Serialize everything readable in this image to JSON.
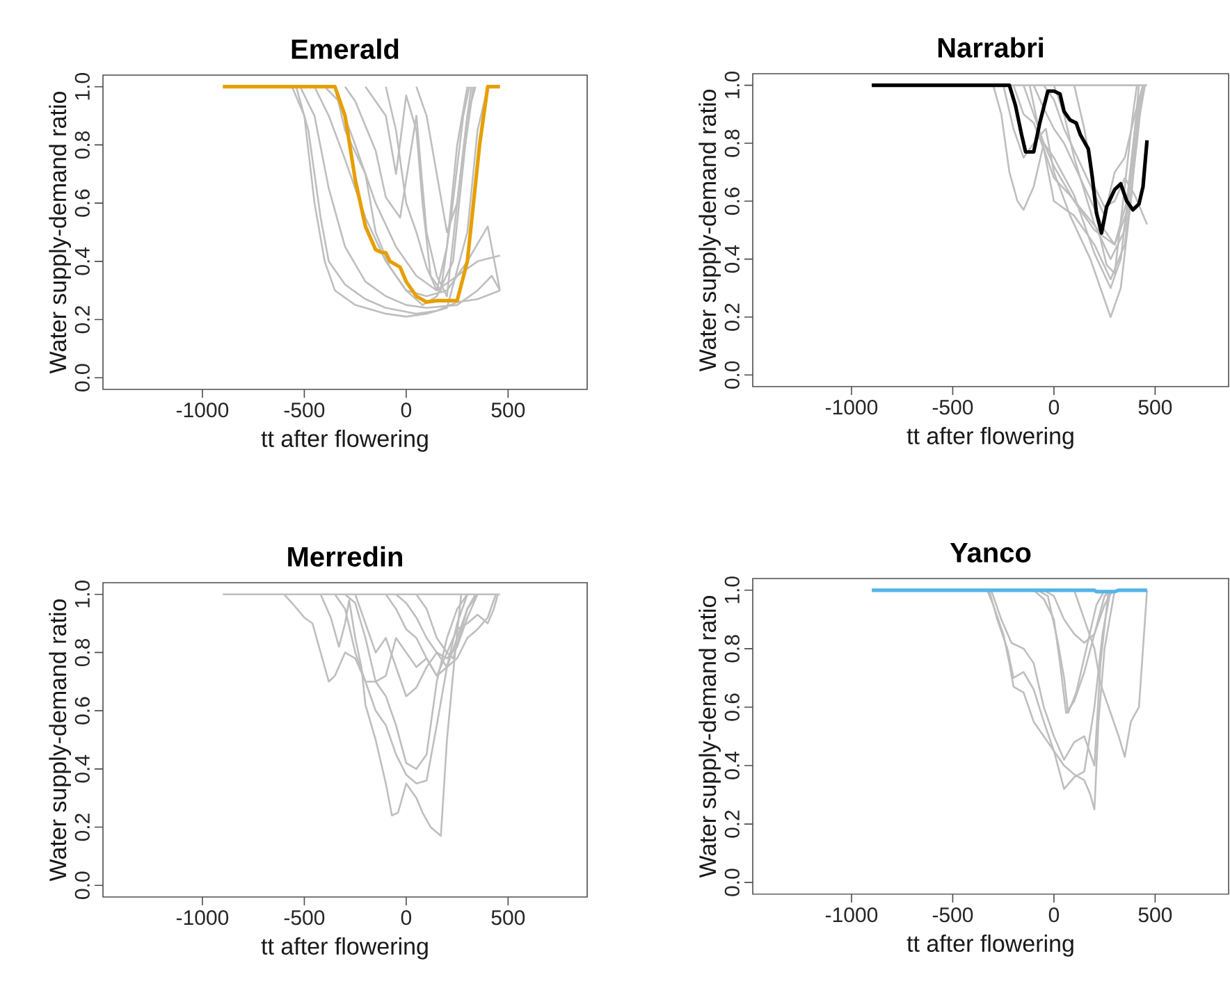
{
  "chart_data": [
    {
      "type": "line",
      "title": "Emerald",
      "xlabel": "tt after flowering",
      "ylabel": "Water supply-demand ratio",
      "xlim": [
        -1488,
        888
      ],
      "ylim": [
        -0.04,
        1.04
      ],
      "xticks": [
        -1000,
        -500,
        0,
        500
      ],
      "yticks": [
        {
          "value": 0,
          "label": "0.0"
        },
        {
          "value": 0.2,
          "label": "0.2"
        },
        {
          "value": 0.4,
          "label": "0.4"
        },
        {
          "value": 0.6,
          "label": "0.6"
        },
        {
          "value": 0.8,
          "label": "0.8"
        },
        {
          "value": 1,
          "label": "1.0"
        }
      ],
      "series": [
        {
          "color": "#bebebe",
          "x": [
            -560,
            -500,
            -450,
            -400,
            -350,
            -250,
            -100,
            0,
            100,
            200,
            300,
            350,
            400,
            460
          ],
          "values": [
            1,
            0.9,
            0.6,
            0.4,
            0.3,
            0.25,
            0.22,
            0.21,
            0.22,
            0.24,
            0.5,
            0.85,
            1,
            1
          ]
        },
        {
          "color": "#bebebe",
          "x": [
            -540,
            -480,
            -420,
            -380,
            -300,
            -200,
            -100,
            50,
            150,
            250,
            350,
            460
          ],
          "values": [
            1,
            0.85,
            0.55,
            0.4,
            0.32,
            0.27,
            0.24,
            0.22,
            0.23,
            0.26,
            0.27,
            0.3
          ]
        },
        {
          "color": "#bebebe",
          "x": [
            -520,
            -450,
            -380,
            -300,
            -200,
            -100,
            0,
            100,
            250,
            350,
            420,
            460
          ],
          "values": [
            1,
            0.9,
            0.65,
            0.45,
            0.33,
            0.28,
            0.25,
            0.24,
            0.25,
            0.3,
            0.35,
            0.3
          ]
        },
        {
          "color": "#bebebe",
          "x": [
            -450,
            -380,
            -300,
            -200,
            -100,
            0,
            100,
            200,
            300,
            400,
            460
          ],
          "values": [
            1,
            0.9,
            0.75,
            0.55,
            0.4,
            0.3,
            0.28,
            0.3,
            0.4,
            0.52,
            0.3
          ]
        },
        {
          "color": "#bebebe",
          "x": [
            -400,
            -330,
            -250,
            -150,
            -50,
            50,
            150,
            250,
            350,
            460
          ],
          "values": [
            1,
            0.95,
            0.8,
            0.6,
            0.45,
            0.35,
            0.3,
            0.35,
            0.4,
            0.42
          ]
        },
        {
          "color": "#bebebe",
          "x": [
            -300,
            -250,
            -150,
            -100,
            -30,
            50,
            100,
            150,
            200,
            250,
            300,
            340
          ],
          "values": [
            1,
            0.95,
            0.78,
            0.62,
            0.55,
            0.9,
            0.5,
            0.35,
            0.28,
            0.6,
            0.9,
            1
          ]
        },
        {
          "color": "#bebebe",
          "x": [
            -200,
            -100,
            -50,
            0,
            50,
            80,
            120,
            170,
            220,
            280,
            310
          ],
          "values": [
            1,
            0.9,
            0.7,
            0.97,
            0.85,
            0.6,
            0.35,
            0.3,
            0.55,
            0.9,
            1
          ]
        },
        {
          "color": "#bebebe",
          "x": [
            -100,
            -50,
            0,
            50,
            100,
            150,
            200,
            250,
            300
          ],
          "values": [
            1,
            0.85,
            0.6,
            0.5,
            0.38,
            0.3,
            0.45,
            0.8,
            1
          ]
        },
        {
          "color": "#bebebe",
          "x": [
            50,
            100,
            150,
            200,
            250,
            300,
            320
          ],
          "values": [
            1,
            0.9,
            0.7,
            0.5,
            0.6,
            0.9,
            1
          ]
        },
        {
          "color": "#bebebe",
          "x": [
            -350,
            -300,
            -200,
            -150,
            -80,
            0,
            80,
            150,
            230,
            290,
            330
          ],
          "values": [
            1,
            0.85,
            0.7,
            0.5,
            0.38,
            0.3,
            0.25,
            0.28,
            0.4,
            0.8,
            1
          ]
        },
        {
          "color": "#e69f00",
          "x": [
            -900,
            -350,
            -300,
            -250,
            -200,
            -150,
            -120,
            -100,
            -80,
            -30,
            0,
            50,
            100,
            150,
            250,
            300,
            330,
            360,
            380,
            400,
            460
          ],
          "values": [
            1,
            1,
            0.9,
            0.68,
            0.52,
            0.44,
            0.43,
            0.43,
            0.4,
            0.38,
            0.33,
            0.28,
            0.26,
            0.265,
            0.265,
            0.4,
            0.6,
            0.8,
            0.9,
            1,
            1
          ]
        }
      ]
    },
    {
      "type": "line",
      "title": "Narrabri",
      "xlabel": "tt after flowering",
      "ylabel": "Water supply-demand ratio",
      "xlim": [
        -1488,
        863
      ],
      "ylim": [
        -0.04,
        1.04
      ],
      "xticks": [
        -1000,
        -500,
        0,
        500
      ],
      "yticks": [
        {
          "value": 0,
          "label": "0.0"
        },
        {
          "value": 0.2,
          "label": "0.2"
        },
        {
          "value": 0.4,
          "label": "0.4"
        },
        {
          "value": 0.6,
          "label": "0.6"
        },
        {
          "value": 0.8,
          "label": "0.8"
        },
        {
          "value": 1,
          "label": "1.0"
        }
      ],
      "series": [
        {
          "color": "#bebebe",
          "x": [
            -900,
            460
          ],
          "values": [
            1,
            1
          ]
        },
        {
          "color": "#bebebe",
          "x": [
            -300,
            -260,
            -220,
            -180,
            -150,
            -100,
            -50,
            0,
            100,
            200,
            300,
            380,
            420,
            440
          ],
          "values": [
            1,
            0.9,
            0.7,
            0.6,
            0.57,
            0.65,
            0.8,
            0.72,
            0.6,
            0.5,
            0.45,
            0.6,
            0.9,
            1
          ]
        },
        {
          "color": "#bebebe",
          "x": [
            -250,
            -200,
            -150,
            -100,
            -40,
            0,
            80,
            180,
            280,
            330,
            380,
            420,
            440
          ],
          "values": [
            1,
            0.85,
            0.75,
            0.8,
            0.85,
            0.7,
            0.55,
            0.4,
            0.2,
            0.3,
            0.6,
            0.95,
            1
          ]
        },
        {
          "color": "#bebebe",
          "x": [
            -200,
            -150,
            -100,
            -50,
            0,
            100,
            200,
            280,
            350,
            410,
            440
          ],
          "values": [
            1,
            0.9,
            0.87,
            0.78,
            0.6,
            0.55,
            0.45,
            0.33,
            0.45,
            0.8,
            1
          ]
        },
        {
          "color": "#bebebe",
          "x": [
            -150,
            -100,
            -50,
            0,
            100,
            200,
            280,
            330,
            380,
            420
          ],
          "values": [
            1,
            0.9,
            0.8,
            0.75,
            0.62,
            0.42,
            0.3,
            0.4,
            0.7,
            1
          ]
        },
        {
          "color": "#bebebe",
          "x": [
            -100,
            -50,
            0,
            50,
            150,
            250,
            300,
            360,
            400,
            440
          ],
          "values": [
            1,
            0.92,
            0.85,
            0.8,
            0.65,
            0.5,
            0.45,
            0.6,
            0.85,
            1
          ]
        },
        {
          "color": "#bebebe",
          "x": [
            -50,
            0,
            50,
            150,
            250,
            300,
            350,
            400,
            440
          ],
          "values": [
            1,
            0.95,
            0.85,
            0.7,
            0.55,
            0.7,
            0.75,
            0.9,
            1
          ]
        },
        {
          "color": "#bebebe",
          "x": [
            0,
            50,
            100,
            200,
            280,
            350,
            400,
            450
          ],
          "values": [
            1,
            0.9,
            0.75,
            0.52,
            0.4,
            0.5,
            0.8,
            1
          ]
        },
        {
          "color": "#bebebe",
          "x": [
            100,
            150,
            200,
            250,
            300,
            350,
            400,
            460
          ],
          "values": [
            1,
            0.85,
            0.65,
            0.58,
            0.6,
            0.68,
            0.62,
            0.52
          ]
        },
        {
          "color": "#bebebe",
          "x": [
            -120,
            -60,
            0,
            80,
            150,
            220,
            260,
            300,
            350,
            390,
            410
          ],
          "values": [
            1,
            0.8,
            0.68,
            0.62,
            0.56,
            0.5,
            0.38,
            0.35,
            0.65,
            0.9,
            1
          ]
        },
        {
          "color": "#000000",
          "x": [
            -900,
            -220,
            -190,
            -160,
            -140,
            -100,
            -70,
            -30,
            0,
            30,
            50,
            80,
            110,
            130,
            170,
            190,
            210,
            235,
            260,
            300,
            330,
            360,
            390,
            420,
            440,
            460
          ],
          "values": [
            1,
            1,
            0.93,
            0.83,
            0.77,
            0.77,
            0.87,
            0.98,
            0.98,
            0.97,
            0.91,
            0.88,
            0.87,
            0.83,
            0.78,
            0.68,
            0.56,
            0.49,
            0.58,
            0.64,
            0.66,
            0.6,
            0.57,
            0.59,
            0.65,
            0.81
          ]
        }
      ]
    },
    {
      "type": "line",
      "title": "Merredin",
      "xlabel": "tt after flowering",
      "ylabel": "Water supply-demand ratio",
      "xlim": [
        -1488,
        888
      ],
      "ylim": [
        -0.04,
        1.04
      ],
      "xticks": [
        -1000,
        -500,
        0,
        500
      ],
      "yticks": [
        {
          "value": 0,
          "label": "0.0"
        },
        {
          "value": 0.2,
          "label": "0.2"
        },
        {
          "value": 0.4,
          "label": "0.4"
        },
        {
          "value": 0.6,
          "label": "0.6"
        },
        {
          "value": 0.8,
          "label": "0.8"
        },
        {
          "value": 1,
          "label": "1.0"
        }
      ],
      "series": [
        {
          "color": "#bebebe",
          "x": [
            -900,
            460
          ],
          "values": [
            1,
            1
          ]
        },
        {
          "color": "#bebebe",
          "x": [
            -600,
            -560,
            -500,
            -460,
            -420,
            -380,
            -350,
            -300,
            -250,
            -200,
            -150,
            -100,
            -50,
            0,
            50,
            100,
            150,
            200,
            250,
            300,
            350
          ],
          "values": [
            1,
            0.97,
            0.92,
            0.9,
            0.8,
            0.7,
            0.72,
            0.8,
            0.78,
            0.7,
            0.7,
            0.72,
            0.85,
            0.8,
            0.75,
            0.78,
            0.72,
            0.75,
            0.85,
            0.95,
            1
          ]
        },
        {
          "color": "#bebebe",
          "x": [
            -420,
            -370,
            -330,
            -300,
            -280,
            -250,
            -220,
            -200,
            -150,
            -100,
            -70,
            -40,
            0,
            50,
            80,
            120,
            170,
            200,
            240,
            270
          ],
          "values": [
            1,
            0.92,
            0.82,
            0.9,
            0.98,
            0.85,
            0.75,
            0.62,
            0.5,
            0.35,
            0.24,
            0.25,
            0.35,
            0.3,
            0.25,
            0.2,
            0.17,
            0.5,
            0.8,
            1
          ]
        },
        {
          "color": "#bebebe",
          "x": [
            -350,
            -300,
            -250,
            -200,
            -150,
            -100,
            -50,
            0,
            50,
            100,
            150,
            200,
            250,
            300
          ],
          "values": [
            1,
            0.95,
            0.8,
            0.7,
            0.6,
            0.55,
            0.45,
            0.38,
            0.35,
            0.36,
            0.55,
            0.75,
            0.9,
            1
          ]
        },
        {
          "color": "#bebebe",
          "x": [
            -300,
            -250,
            -200,
            -150,
            -100,
            -50,
            0,
            50,
            100,
            150,
            200,
            250,
            300
          ],
          "values": [
            1,
            0.97,
            0.85,
            0.7,
            0.65,
            0.55,
            0.42,
            0.4,
            0.45,
            0.7,
            0.85,
            0.95,
            1
          ]
        },
        {
          "color": "#bebebe",
          "x": [
            -250,
            -200,
            -150,
            -100,
            -50,
            0,
            50,
            100,
            150,
            200,
            250,
            300,
            350
          ],
          "values": [
            1,
            0.9,
            0.8,
            0.85,
            0.75,
            0.65,
            0.68,
            0.75,
            0.8,
            0.78,
            0.82,
            0.92,
            1
          ]
        },
        {
          "color": "#bebebe",
          "x": [
            -100,
            -50,
            0,
            50,
            100,
            150,
            200,
            250,
            300,
            350,
            400,
            430,
            450
          ],
          "values": [
            1,
            0.95,
            0.88,
            0.85,
            0.78,
            0.72,
            0.8,
            0.88,
            0.9,
            0.93,
            0.9,
            0.95,
            1
          ]
        },
        {
          "color": "#bebebe",
          "x": [
            -50,
            0,
            50,
            100,
            150,
            200,
            250,
            300,
            350,
            400,
            440
          ],
          "values": [
            1,
            0.97,
            0.92,
            0.85,
            0.8,
            0.75,
            0.78,
            0.85,
            0.88,
            0.92,
            1
          ]
        },
        {
          "color": "#bebebe",
          "x": [
            50,
            100,
            150,
            200,
            230,
            260,
            300,
            340
          ],
          "values": [
            1,
            0.95,
            0.85,
            0.8,
            0.78,
            0.85,
            0.95,
            1
          ]
        }
      ]
    },
    {
      "type": "line",
      "title": "Yanco",
      "xlabel": "tt after flowering",
      "ylabel": "Water supply-demand ratio",
      "xlim": [
        -1488,
        863
      ],
      "ylim": [
        -0.04,
        1.04
      ],
      "xticks": [
        -1000,
        -500,
        0,
        500
      ],
      "yticks": [
        {
          "value": 0,
          "label": "0.0"
        },
        {
          "value": 0.2,
          "label": "0.2"
        },
        {
          "value": 0.4,
          "label": "0.4"
        },
        {
          "value": 0.6,
          "label": "0.6"
        },
        {
          "value": 0.8,
          "label": "0.8"
        },
        {
          "value": 1,
          "label": "1.0"
        }
      ],
      "series": [
        {
          "color": "#bebebe",
          "x": [
            -330,
            -300,
            -250,
            -220,
            -200,
            -150,
            -100,
            -50,
            0,
            50,
            100,
            150,
            180,
            200,
            220,
            250,
            300
          ],
          "values": [
            1,
            0.95,
            0.85,
            0.75,
            0.67,
            0.65,
            0.55,
            0.5,
            0.45,
            0.4,
            0.37,
            0.35,
            0.3,
            0.25,
            0.55,
            0.8,
            1
          ]
        },
        {
          "color": "#bebebe",
          "x": [
            -320,
            -280,
            -230,
            -200,
            -150,
            -100,
            -50,
            0,
            50,
            100,
            150,
            200,
            240,
            280
          ],
          "values": [
            1,
            0.9,
            0.8,
            0.7,
            0.72,
            0.66,
            0.55,
            0.45,
            0.32,
            0.36,
            0.38,
            0.6,
            0.85,
            1
          ]
        },
        {
          "color": "#bebebe",
          "x": [
            -310,
            -260,
            -210,
            -150,
            -100,
            -50,
            0,
            50,
            100,
            150,
            200,
            230,
            270
          ],
          "values": [
            1,
            0.9,
            0.82,
            0.8,
            0.75,
            0.6,
            0.5,
            0.42,
            0.48,
            0.5,
            0.4,
            0.75,
            1
          ]
        },
        {
          "color": "#bebebe",
          "x": [
            -100,
            -50,
            0,
            30,
            60,
            100,
            150,
            200,
            250,
            290
          ],
          "values": [
            1,
            0.97,
            0.9,
            0.75,
            0.58,
            0.62,
            0.72,
            0.85,
            0.95,
            1
          ]
        },
        {
          "color": "#bebebe",
          "x": [
            -80,
            -30,
            20,
            50,
            70,
            110,
            160,
            210,
            250
          ],
          "values": [
            1,
            0.98,
            0.82,
            0.7,
            0.58,
            0.65,
            0.8,
            0.95,
            1
          ]
        },
        {
          "color": "#bebebe",
          "x": [
            -50,
            0,
            50,
            100,
            150,
            200,
            250,
            280
          ],
          "values": [
            1,
            0.98,
            0.9,
            0.85,
            0.82,
            0.85,
            0.98,
            1
          ]
        },
        {
          "color": "#bebebe",
          "x": [
            100,
            150,
            200,
            230,
            270,
            320,
            350,
            380,
            420,
            440,
            460
          ],
          "values": [
            1,
            0.9,
            0.8,
            0.68,
            0.6,
            0.5,
            0.43,
            0.55,
            0.6,
            0.8,
            1
          ]
        },
        {
          "color": "#56b4e9",
          "x": [
            -900,
            200,
            210,
            300,
            320,
            460
          ],
          "values": [
            1,
            1,
            0.995,
            0.995,
            1,
            1
          ]
        }
      ]
    }
  ]
}
